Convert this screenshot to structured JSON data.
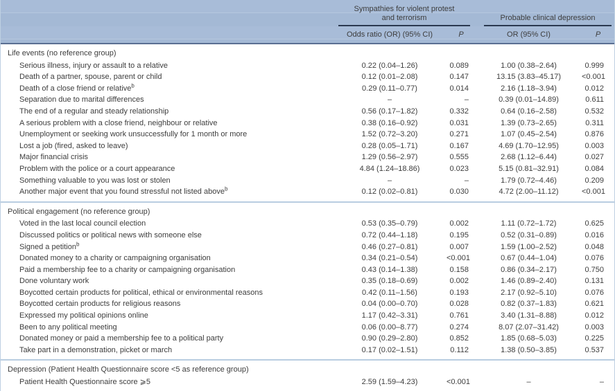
{
  "colors": {
    "header_background": "#a6bad6",
    "group_rule": "#2b3950",
    "header_bottom_rule": "#5b6f92",
    "section_divider": "#b9cde1",
    "outer_border": "#bed0e2",
    "text": "#3d3d3d"
  },
  "table": {
    "column_groups": [
      {
        "title_lines": [
          "Sympathies for violent protest",
          "and terrorism"
        ]
      },
      {
        "title_lines": [
          "Probable clinical depression"
        ]
      }
    ],
    "sub_headers": {
      "or1": "Odds ratio (OR) (95% CI)",
      "p1": "P",
      "or2": "OR (95% CI)",
      "p2": "P"
    },
    "sections": [
      {
        "header": "Life events (no reference group)",
        "rows": [
          {
            "label": "Serious illness, injury or assault to a relative",
            "sup": "",
            "or1": "0.22 (0.04–1.26)",
            "p1": "0.089",
            "or2": "1.00 (0.38–2.64)",
            "p2": "0.999"
          },
          {
            "label": "Death of a partner, spouse, parent or child",
            "sup": "",
            "or1": "0.12 (0.01–2.08)",
            "p1": "0.147",
            "or2": "13.15 (3.83–45.17)",
            "p2": "<0.001"
          },
          {
            "label": "Death of a close friend or relative",
            "sup": "b",
            "or1": "0.29 (0.11–0.77)",
            "p1": "0.014",
            "or2": "2.16 (1.18–3.94)",
            "p2": "0.012"
          },
          {
            "label": "Separation due to marital differences",
            "sup": "",
            "or1": "–",
            "p1": "–",
            "or2": "0.39 (0.01–14.89)",
            "p2": "0.611"
          },
          {
            "label": "The end of a regular and steady relationship",
            "sup": "",
            "or1": "0.56 (0.17–1.82)",
            "p1": "0.332",
            "or2": "0.64 (0.16–2.58)",
            "p2": "0.532"
          },
          {
            "label": "A serious problem with a close friend, neighbour or relative",
            "sup": "",
            "or1": "0.38 (0.16–0.92)",
            "p1": "0.031",
            "or2": "1.39 (0.73–2.65)",
            "p2": "0.311"
          },
          {
            "label": "Unemployment or seeking work unsuccessfully for 1 month or more",
            "sup": "",
            "or1": "1.52 (0.72–3.20)",
            "p1": "0.271",
            "or2": "1.07 (0.45–2.54)",
            "p2": "0.876"
          },
          {
            "label": "Lost a job (fired, asked to leave)",
            "sup": "",
            "or1": "0.28 (0.05–1.71)",
            "p1": "0.167",
            "or2": "4.69 (1.70–12.95)",
            "p2": "0.003"
          },
          {
            "label": "Major financial crisis",
            "sup": "",
            "or1": "1.29 (0.56–2.97)",
            "p1": "0.555",
            "or2": "2.68 (1.12–6.44)",
            "p2": "0.027"
          },
          {
            "label": "Problem with the police or a court appearance",
            "sup": "",
            "or1": "4.84 (1.24–18.86)",
            "p1": "0.023",
            "or2": "5.15 (0.81–32.91)",
            "p2": "0.084"
          },
          {
            "label": "Something valuable to you was lost or stolen",
            "sup": "",
            "or1": "–",
            "p1": "–",
            "or2": "1.79 (0.72–4.46)",
            "p2": "0.209"
          },
          {
            "label": "Another major event that you found stressful not listed above",
            "sup": "b",
            "or1": "0.12 (0.02–0.81)",
            "p1": "0.030",
            "or2": "4.72 (2.00–11.12)",
            "p2": "<0.001"
          }
        ]
      },
      {
        "header": "Political engagement (no reference group)",
        "rows": [
          {
            "label": "Voted in the last local council election",
            "sup": "",
            "or1": "0.53 (0.35–0.79)",
            "p1": "0.002",
            "or2": "1.11 (0.72–1.72)",
            "p2": "0.625"
          },
          {
            "label": "Discussed politics or political news with someone else",
            "sup": "",
            "or1": "0.72 (0.44–1.18)",
            "p1": "0.195",
            "or2": "0.52 (0.31–0.89)",
            "p2": "0.016"
          },
          {
            "label": "Signed a petition",
            "sup": "b",
            "or1": "0.46 (0.27–0.81)",
            "p1": "0.007",
            "or2": "1.59 (1.00–2.52)",
            "p2": "0.048"
          },
          {
            "label": "Donated money to a charity or campaigning organisation",
            "sup": "",
            "or1": "0.34 (0.21–0.54)",
            "p1": "<0.001",
            "or2": "0.67 (0.44–1.04)",
            "p2": "0.076"
          },
          {
            "label": "Paid a membership fee to a charity or campaigning organisation",
            "sup": "",
            "or1": "0.43 (0.14–1.38)",
            "p1": "0.158",
            "or2": "0.86 (0.34–2.17)",
            "p2": "0.750"
          },
          {
            "label": "Done voluntary work",
            "sup": "",
            "or1": "0.35 (0.18–0.69)",
            "p1": "0.002",
            "or2": "1.46 (0.89–2.40)",
            "p2": "0.131"
          },
          {
            "label": "Boycotted certain products for political, ethical or environmental reasons",
            "sup": "",
            "or1": "0.42 (0.11–1.56)",
            "p1": "0.193",
            "or2": "2.17 (0.92–5.10)",
            "p2": "0.076"
          },
          {
            "label": "Boycotted certain products for religious reasons",
            "sup": "",
            "or1": "0.04 (0.00–0.70)",
            "p1": "0.028",
            "or2": "0.82 (0.37–1.83)",
            "p2": "0.621"
          },
          {
            "label": "Expressed my political opinions online",
            "sup": "",
            "or1": "1.17 (0.42–3.31)",
            "p1": "0.761",
            "or2": "3.40 (1.31–8.88)",
            "p2": "0.012"
          },
          {
            "label": "Been to any political meeting",
            "sup": "",
            "or1": "0.06 (0.00–8.77)",
            "p1": "0.274",
            "or2": "8.07 (2.07–31.42)",
            "p2": "0.003"
          },
          {
            "label": "Donated money or paid a membership fee to a political party",
            "sup": "",
            "or1": "0.90 (0.29–2.80)",
            "p1": "0.852",
            "or2": "1.85 (0.68–5.03)",
            "p2": "0.225"
          },
          {
            "label": "Take part in a demonstration, picket or march",
            "sup": "",
            "or1": "0.17 (0.02–1.51)",
            "p1": "0.112",
            "or2": "1.38 (0.50–3.85)",
            "p2": "0.537"
          }
        ]
      },
      {
        "header": "Depression (Patient Health Questionnaire score <5 as reference group)",
        "rows": [
          {
            "label": "Patient Health Questionnaire score ⩾5",
            "sup": "",
            "or1": "2.59 (1.59–4.23)",
            "p1": "<0.001",
            "or2": "–",
            "p2": "–"
          }
        ]
      }
    ]
  }
}
